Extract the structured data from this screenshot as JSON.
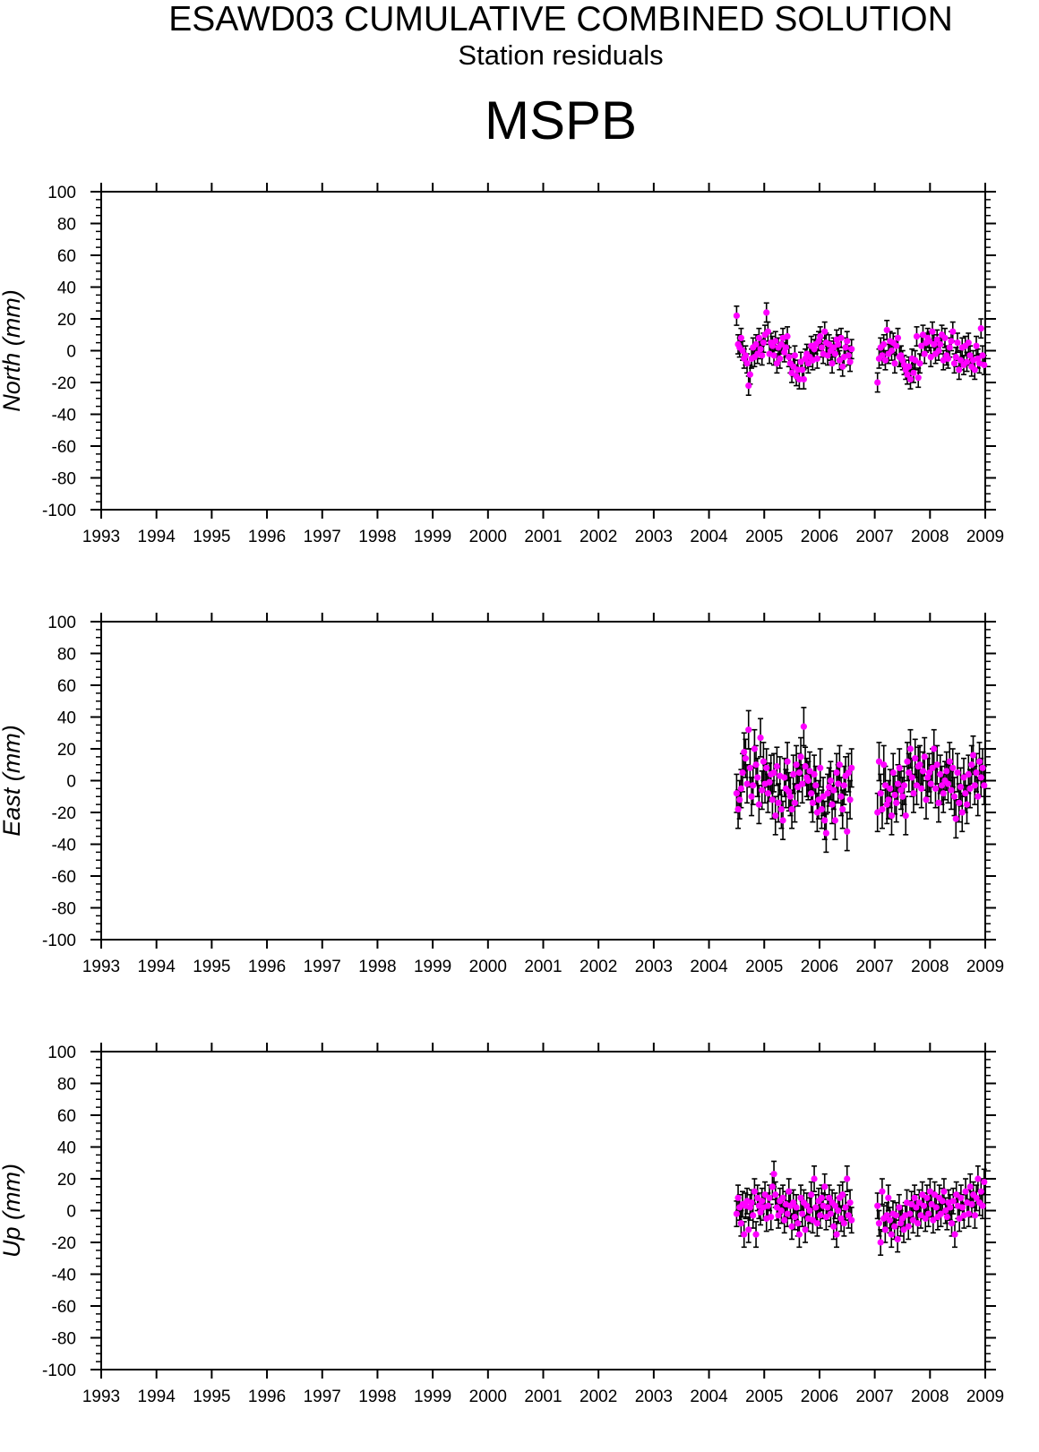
{
  "header": {
    "title": "ESAWD03 CUMULATIVE COMBINED SOLUTION",
    "subtitle": "Station residuals",
    "station": "MSPB"
  },
  "colors": {
    "marker": "#ff00ff",
    "errorbar": "#000000",
    "axis": "#000000",
    "background": "#ffffff"
  },
  "chart_data": [
    {
      "type": "scatter",
      "component": "north",
      "ylabel": "North (mm)",
      "xlim": [
        1993,
        2009
      ],
      "ylim": [
        -100,
        100
      ],
      "x_ticks": [
        1993,
        1994,
        1995,
        1996,
        1997,
        1998,
        1999,
        2000,
        2001,
        2002,
        2003,
        2004,
        2005,
        2006,
        2007,
        2008,
        2009
      ],
      "y_ticks": [
        100,
        80,
        60,
        40,
        20,
        0,
        -20,
        -40,
        -60,
        -80,
        -100
      ],
      "grid": false,
      "series": [
        {
          "marker": "circle",
          "error_bars": true,
          "segments": [
            {
              "x_range": [
                2004.5,
                2006.58
              ],
              "errors_mm": 6,
              "y": [
                22,
                4,
                2,
                8,
                0,
                -5,
                -3,
                -8,
                -22,
                -15,
                -5,
                2,
                -4,
                4,
                -2,
                8,
                1,
                -3,
                5,
                10,
                24,
                12,
                -2,
                5,
                3,
                -3,
                6,
                -8,
                2,
                -5,
                4,
                8,
                -1,
                2,
                9,
                -4,
                -8,
                -14,
                -10,
                -3,
                -16,
                -12,
                -18,
                -7,
                -12,
                -18,
                -5,
                -2,
                -8,
                -4,
                3,
                -6,
                1,
                4,
                -5,
                6,
                9,
                2,
                -2,
                12,
                5,
                -3,
                4,
                0,
                -8,
                2,
                -2,
                7,
                4,
                -6,
                8,
                -10,
                -4,
                2,
                6,
                -3,
                -7,
                1
              ]
            },
            {
              "x_range": [
                2007.05,
                2008.98
              ],
              "errors_mm": 6,
              "y": [
                -20,
                -5,
                2,
                -3,
                4,
                -6,
                13,
                -2,
                6,
                0,
                5,
                -8,
                3,
                8,
                -4,
                -3,
                -6,
                -9,
                -12,
                -15,
                -10,
                -18,
                -5,
                -14,
                -6,
                9,
                -17,
                -8,
                3,
                10,
                -2,
                5,
                8,
                6,
                -4,
                12,
                4,
                -2,
                7,
                0,
                4,
                10,
                -6,
                8,
                -3,
                -5,
                2,
                6,
                12,
                -8,
                -4,
                5,
                -12,
                -6,
                2,
                -9,
                3,
                -7,
                5,
                -3,
                -10,
                -6,
                -12,
                3,
                -5,
                -8,
                14,
                -3,
                -9
              ]
            }
          ]
        }
      ]
    },
    {
      "type": "scatter",
      "component": "east",
      "ylabel": "East (mm)",
      "xlim": [
        1993,
        2009
      ],
      "ylim": [
        -100,
        100
      ],
      "x_ticks": [
        1993,
        1994,
        1995,
        1996,
        1997,
        1998,
        1999,
        2000,
        2001,
        2002,
        2003,
        2004,
        2005,
        2006,
        2007,
        2008,
        2009
      ],
      "y_ticks": [
        100,
        80,
        60,
        40,
        20,
        0,
        -20,
        -40,
        -60,
        -80,
        -100
      ],
      "grid": false,
      "series": [
        {
          "marker": "circle",
          "error_bars": true,
          "segments": [
            {
              "x_range": [
                2004.5,
                2006.58
              ],
              "errors_mm": 12,
              "y": [
                -8,
                -18,
                -12,
                -5,
                5,
                18,
                14,
                -2,
                32,
                8,
                -10,
                -3,
                20,
                10,
                2,
                -15,
                27,
                -6,
                12,
                -2,
                8,
                -8,
                -1,
                4,
                -12,
                5,
                -22,
                9,
                -14,
                3,
                -18,
                -25,
                2,
                -5,
                12,
                -7,
                -10,
                -18,
                4,
                -14,
                10,
                -4,
                5,
                15,
                -2,
                34,
                9,
                2,
                0,
                6,
                -8,
                -14,
                4,
                -3,
                -20,
                -12,
                8,
                -18,
                -10,
                -25,
                -33,
                -8,
                -4,
                0,
                -15,
                -6,
                -25,
                5,
                -2,
                10,
                -10,
                -18,
                -3,
                3,
                -32,
                5,
                -12,
                8
              ]
            },
            {
              "x_range": [
                2007.05,
                2008.98
              ],
              "errors_mm": 12,
              "y": [
                -20,
                12,
                -8,
                -18,
                10,
                -3,
                -15,
                -12,
                -5,
                -22,
                5,
                -9,
                -14,
                -2,
                8,
                -6,
                -10,
                -3,
                -22,
                12,
                5,
                20,
                2,
                -8,
                14,
                -3,
                9,
                10,
                -5,
                6,
                15,
                -12,
                2,
                5,
                -2,
                8,
                20,
                -5,
                10,
                -14,
                4,
                -3,
                -8,
                0,
                6,
                -2,
                12,
                -6,
                8,
                -10,
                -24,
                5,
                -14,
                -4,
                -20,
                2,
                -8,
                -15,
                4,
                -5,
                10,
                16,
                -3,
                5,
                -10,
                12,
                2,
                8,
                -3
              ]
            }
          ]
        }
      ]
    },
    {
      "type": "scatter",
      "component": "up",
      "ylabel": "Up (mm)",
      "xlim": [
        1993,
        2009
      ],
      "ylim": [
        -100,
        100
      ],
      "x_ticks": [
        1993,
        1994,
        1995,
        1996,
        1997,
        1998,
        1999,
        2000,
        2001,
        2002,
        2003,
        2004,
        2005,
        2006,
        2007,
        2008,
        2009
      ],
      "y_ticks": [
        100,
        80,
        60,
        40,
        20,
        0,
        -20,
        -40,
        -60,
        -80,
        -100
      ],
      "grid": false,
      "series": [
        {
          "marker": "circle",
          "error_bars": true,
          "segments": [
            {
              "x_range": [
                2004.5,
                2006.58
              ],
              "errors_mm": 8,
              "y": [
                -2,
                8,
                2,
                -8,
                4,
                -15,
                3,
                6,
                -12,
                2,
                5,
                -3,
                12,
                -15,
                8,
                3,
                -1,
                6,
                2,
                10,
                -5,
                3,
                8,
                -4,
                15,
                23,
                10,
                2,
                -3,
                6,
                0,
                8,
                -6,
                4,
                -2,
                12,
                3,
                -10,
                5,
                -4,
                2,
                -8,
                -15,
                8,
                -2,
                5,
                -12,
                3,
                -5,
                0,
                10,
                -6,
                20,
                2,
                -8,
                6,
                -3,
                8,
                3,
                15,
                -4,
                2,
                8,
                -2,
                5,
                -10,
                3,
                -15,
                0,
                8,
                -5,
                10,
                -8,
                2,
                20,
                -3,
                5,
                -6
              ]
            },
            {
              "x_range": [
                2007.05,
                2008.98
              ],
              "errors_mm": 8,
              "y": [
                3,
                -8,
                -20,
                12,
                -5,
                -12,
                -3,
                8,
                -6,
                -15,
                -2,
                -10,
                -3,
                -18,
                2,
                -8,
                -5,
                -12,
                -3,
                5,
                -10,
                -2,
                4,
                -6,
                8,
                2,
                -8,
                5,
                -3,
                10,
                3,
                -5,
                8,
                -2,
                12,
                4,
                -6,
                10,
                2,
                -4,
                8,
                -2,
                6,
                12,
                0,
                -4,
                5,
                2,
                -8,
                6,
                -15,
                10,
                3,
                -5,
                8,
                2,
                -3,
                12,
                5,
                -2,
                15,
                4,
                10,
                -3,
                8,
                20,
                5,
                12,
                3,
                18
              ]
            }
          ]
        }
      ]
    }
  ]
}
